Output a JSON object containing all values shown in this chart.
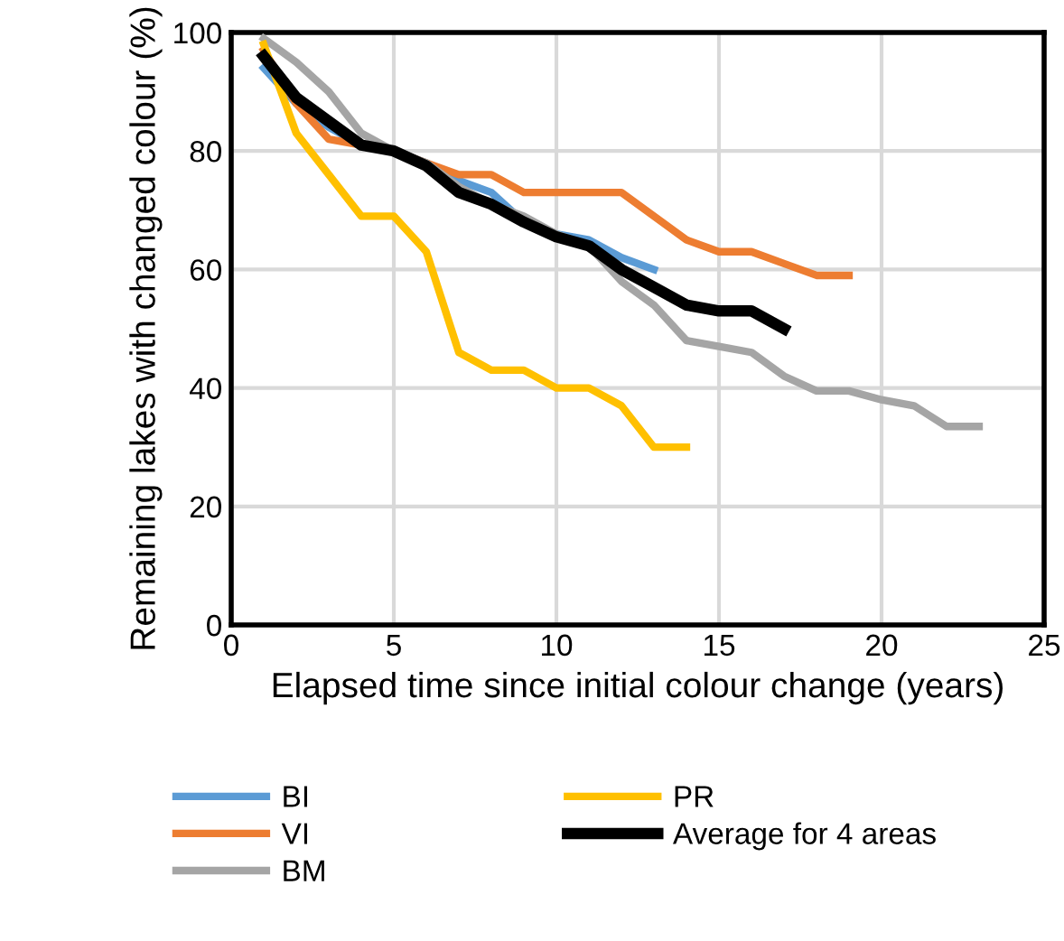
{
  "chart_data": {
    "type": "line",
    "xlabel": "Elapsed time since initial colour change (years)",
    "ylabel": "Remaining lakes with changed colour (%)",
    "xlim": [
      0,
      25
    ],
    "xticks": [
      0,
      5,
      10,
      15,
      20,
      25
    ],
    "ylim": [
      0,
      100
    ],
    "yticks": [
      0,
      20,
      40,
      60,
      80,
      100
    ],
    "grid": true,
    "legend": "bottom",
    "marker": "none",
    "line_style": "solid",
    "series": [
      {
        "name": "BI",
        "color": "#5b9bd5",
        "x": [
          1,
          2,
          3,
          4,
          5,
          6,
          7,
          8,
          9,
          10,
          11,
          12,
          13
        ],
        "values": [
          94,
          88,
          84,
          81,
          80,
          78,
          75,
          73,
          68,
          66,
          65,
          62,
          60
        ]
      },
      {
        "name": "VI",
        "color": "#ed7d31",
        "x": [
          1,
          2,
          3,
          4,
          5,
          6,
          7,
          8,
          9,
          10,
          11,
          12,
          13,
          14,
          15,
          16,
          17,
          18,
          19
        ],
        "values": [
          97,
          88,
          82,
          81,
          80,
          78,
          76,
          76,
          73,
          73,
          73,
          73,
          69,
          65,
          63,
          63,
          61,
          59,
          59
        ]
      },
      {
        "name": "BM",
        "color": "#a5a5a5",
        "x": [
          1,
          2,
          3,
          4,
          5,
          6,
          7,
          8,
          9,
          10,
          11,
          12,
          13,
          14,
          15,
          16,
          17,
          18,
          19,
          20,
          21,
          22,
          23
        ],
        "values": [
          99,
          95,
          90,
          83,
          80,
          78,
          74,
          71,
          69,
          66,
          64,
          58,
          54,
          48,
          47,
          46,
          42,
          39.5,
          39.5,
          38,
          37,
          33.5,
          33.5
        ]
      },
      {
        "name": "PR",
        "color": "#ffc000",
        "x": [
          1,
          2,
          3,
          4,
          5,
          6,
          7,
          8,
          9,
          10,
          11,
          12,
          13,
          14
        ],
        "values": [
          98,
          83,
          76,
          69,
          69,
          63,
          46,
          43,
          43,
          40,
          40,
          37,
          30,
          30
        ]
      },
      {
        "name": "Average for 4 areas",
        "color": "#000000",
        "x": [
          1,
          2,
          3,
          4,
          5,
          6,
          7,
          8,
          9,
          10,
          11,
          12,
          13,
          14,
          15,
          16,
          17
        ],
        "values": [
          96,
          89,
          85,
          81,
          80,
          77.5,
          73,
          71,
          68,
          65.5,
          64,
          60,
          57,
          54,
          53,
          53,
          50
        ]
      }
    ]
  }
}
